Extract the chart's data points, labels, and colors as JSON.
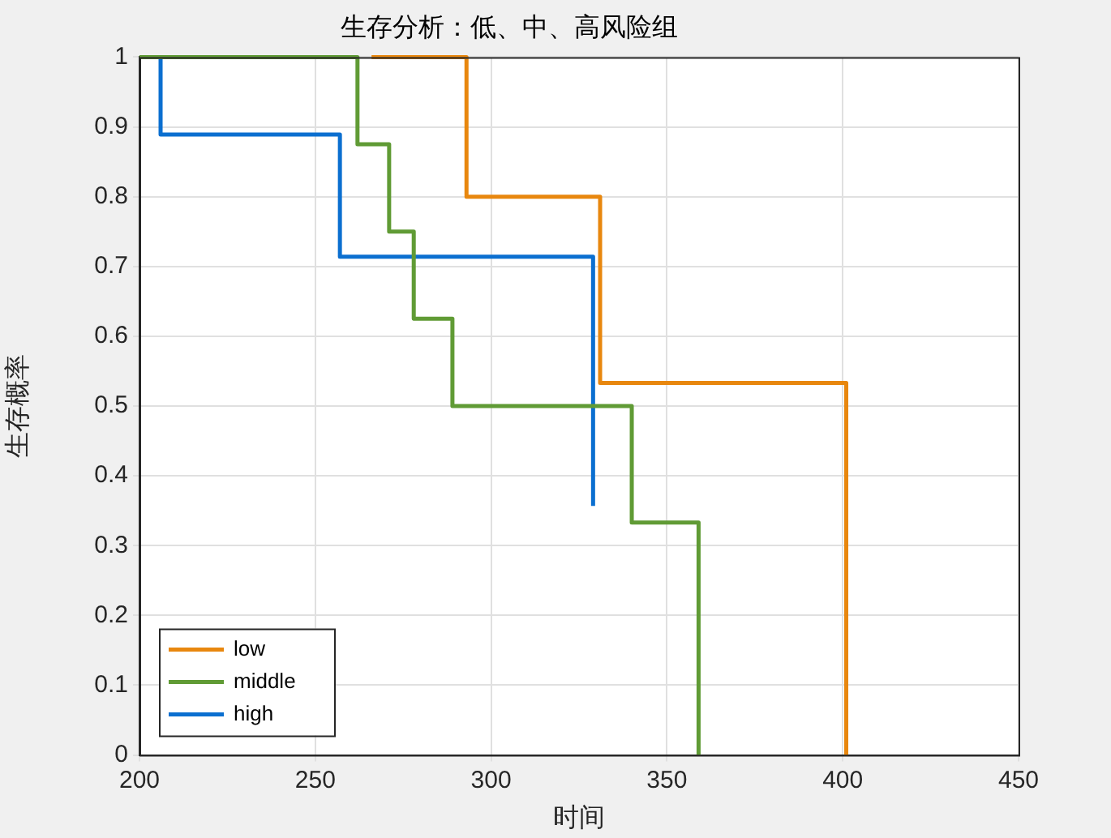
{
  "chart_data": {
    "type": "step",
    "title": "生存分析：低、中、高风险组",
    "xlabel": "时间",
    "ylabel": "生存概率",
    "xlim": [
      200,
      450
    ],
    "xticks": [
      200,
      250,
      300,
      350,
      400,
      450
    ],
    "ylim": [
      0,
      1
    ],
    "yticks": [
      0,
      0.1,
      0.2,
      0.3,
      0.4,
      0.5,
      0.6,
      0.7,
      0.8,
      0.9,
      1
    ],
    "grid": true,
    "legend": "bottom left",
    "line_style": "solid",
    "series": [
      {
        "name": "low",
        "color": "#e8870e",
        "x": [
          266,
          293,
          331,
          401
        ],
        "values": [
          1,
          0.8,
          0.533,
          0
        ]
      },
      {
        "name": "middle",
        "color": "#609b35",
        "x": [
          200,
          262,
          271,
          278,
          289,
          340,
          359
        ],
        "values": [
          1,
          0.875,
          0.75,
          0.625,
          0.5,
          0.333,
          0
        ]
      },
      {
        "name": "high",
        "color": "#0b6fd0",
        "x": [
          206,
          206,
          257,
          329
        ],
        "values": [
          1,
          0.889,
          0.714,
          0.357
        ]
      }
    ]
  }
}
